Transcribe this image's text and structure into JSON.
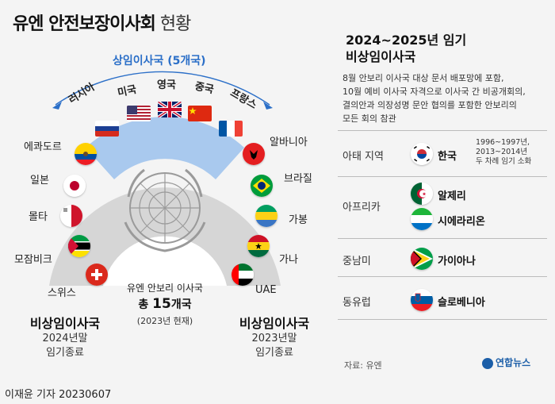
{
  "title": {
    "main": "유엔 안전보장이사회",
    "sub": "현황"
  },
  "permanent": {
    "label": "상임이사국 (5개국)",
    "members": [
      "러시아",
      "미국",
      "영국",
      "중국",
      "프랑스"
    ]
  },
  "left_members": [
    "에콰도르",
    "일본",
    "몰타",
    "모잠비크",
    "스위스"
  ],
  "right_members": [
    "알바니아",
    "브라질",
    "가봉",
    "가나",
    "UAE"
  ],
  "center": {
    "line1": "유엔 안보리 이사국",
    "line2_prefix": "총 ",
    "line2_num": "15",
    "line2_suffix": "개국",
    "line3": "(2023년 현재)"
  },
  "left_group": {
    "title": "비상임이사국",
    "line1": "2024년말",
    "line2": "임기종료"
  },
  "right_group": {
    "title": "비상임이사국",
    "line1": "2023년말",
    "line2": "임기종료"
  },
  "incoming": {
    "title1": "2024~2025년 임기",
    "title2": "비상임이사국",
    "desc": [
      "8월 안보리 이사국 대상 문서 배포망에 포함,",
      "10월 예비 이사국 자격으로 이사국 간 비공개회의,",
      "결의안과 의장성명 문안 협의를 포함한 안보리의",
      "모든 회의 참관"
    ],
    "regions": [
      {
        "region": "아태 지역",
        "countries": [
          "한국"
        ],
        "note": [
          "1996~1997년,",
          "2013~2014년",
          "두 차례 임기 소화"
        ]
      },
      {
        "region": "아프리카",
        "countries": [
          "알제리",
          "시에라리온"
        ]
      },
      {
        "region": "중남미",
        "countries": [
          "가이아나"
        ]
      },
      {
        "region": "동유럽",
        "countries": [
          "슬로베니아"
        ]
      }
    ]
  },
  "source": "자료: 유엔",
  "logo": "연합뉴스",
  "byline": "이재윤 기자  20230607",
  "colors": {
    "accent": "#2b6fc8",
    "ring_light": "#d9d9d9",
    "perm_band": "#a9c9ee"
  }
}
